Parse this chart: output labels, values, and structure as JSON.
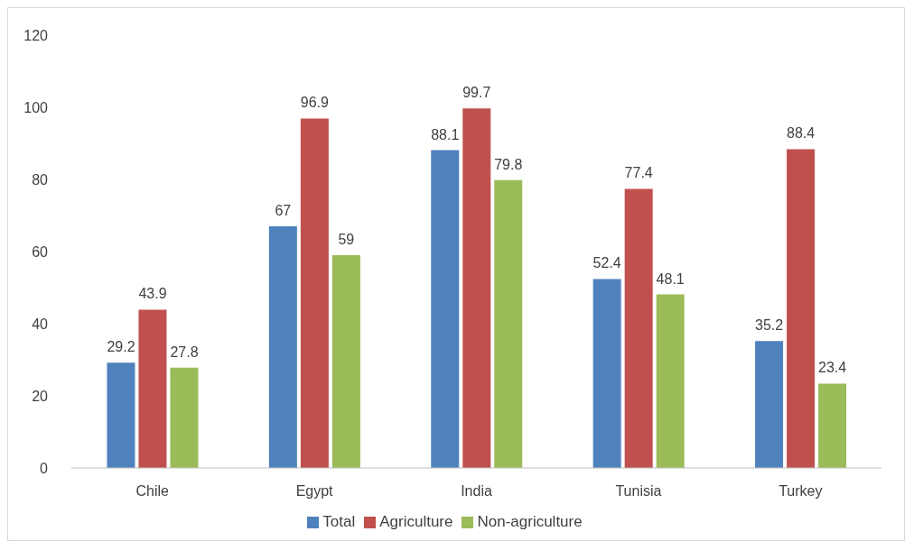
{
  "chart_data": {
    "type": "bar",
    "categories": [
      "Chile",
      "Egypt",
      "India",
      "Tunisia",
      "Turkey"
    ],
    "series": [
      {
        "name": "Total",
        "color": "#4f81bd",
        "values": [
          29.2,
          67,
          88.1,
          52.4,
          35.2
        ]
      },
      {
        "name": "Agriculture",
        "color": "#c0504d",
        "values": [
          43.9,
          96.9,
          99.7,
          77.4,
          88.4
        ]
      },
      {
        "name": "Non-agriculture",
        "color": "#9bbb59",
        "values": [
          27.8,
          59,
          79.8,
          48.1,
          23.4
        ]
      }
    ],
    "ylim": [
      0,
      120
    ],
    "yticks": [
      0,
      20,
      40,
      60,
      80,
      100,
      120
    ],
    "data_labels": true,
    "legend": "bottom"
  }
}
